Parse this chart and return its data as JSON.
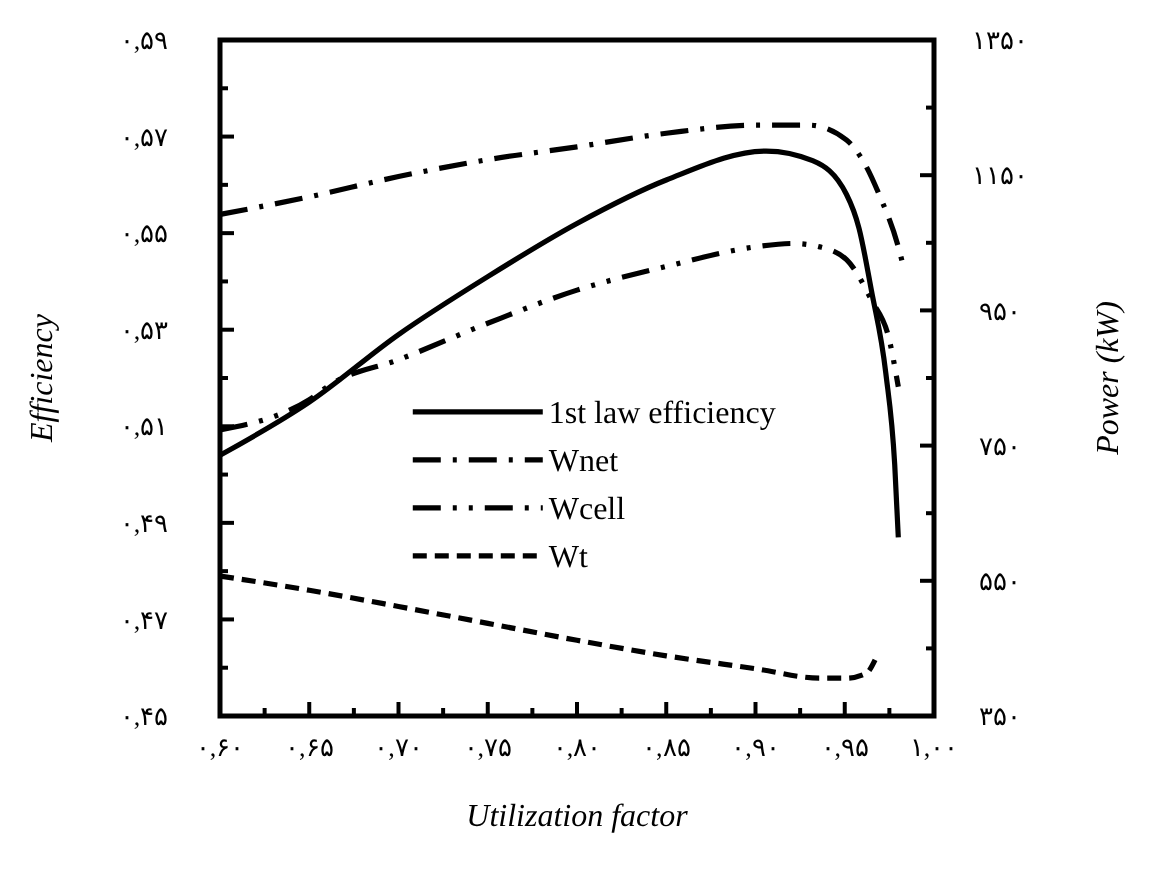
{
  "chart_data": {
    "type": "line",
    "xlabel": "Utilization factor",
    "ylabel": "Efficiency",
    "y2label": "Power  (kW)",
    "xlim": [
      0.6,
      1.0
    ],
    "xticks": [
      {
        "value": 0.6,
        "label": "۰,۶۰"
      },
      {
        "value": 0.625,
        "label": null
      },
      {
        "value": 0.65,
        "label": "۰,۶۵"
      },
      {
        "value": 0.675,
        "label": null
      },
      {
        "value": 0.7,
        "label": "۰,۷۰"
      },
      {
        "value": 0.725,
        "label": null
      },
      {
        "value": 0.75,
        "label": "۰,۷۵"
      },
      {
        "value": 0.775,
        "label": null
      },
      {
        "value": 0.8,
        "label": "۰,۸۰"
      },
      {
        "value": 0.825,
        "label": null
      },
      {
        "value": 0.85,
        "label": "۰,۸۵"
      },
      {
        "value": 0.875,
        "label": null
      },
      {
        "value": 0.9,
        "label": "۰,۹۰"
      },
      {
        "value": 0.925,
        "label": null
      },
      {
        "value": 0.95,
        "label": "۰,۹۵"
      },
      {
        "value": 0.975,
        "label": null
      },
      {
        "value": 1.0,
        "label": "۱,۰۰"
      }
    ],
    "ylim": [
      0.45,
      0.59
    ],
    "yticks": [
      {
        "value": 0.45,
        "label": "۰,۴۵"
      },
      {
        "value": 0.46,
        "label": null
      },
      {
        "value": 0.47,
        "label": "۰,۴۷"
      },
      {
        "value": 0.48,
        "label": null
      },
      {
        "value": 0.49,
        "label": "۰,۴۹"
      },
      {
        "value": 0.5,
        "label": null
      },
      {
        "value": 0.51,
        "label": "۰,۵۱"
      },
      {
        "value": 0.52,
        "label": null
      },
      {
        "value": 0.53,
        "label": "۰,۵۳"
      },
      {
        "value": 0.54,
        "label": null
      },
      {
        "value": 0.55,
        "label": "۰,۵۵"
      },
      {
        "value": 0.56,
        "label": null
      },
      {
        "value": 0.57,
        "label": "۰,۵۷"
      },
      {
        "value": 0.58,
        "label": null
      },
      {
        "value": 0.59,
        "label": "۰,۵۹"
      }
    ],
    "y2lim": [
      350,
      1350
    ],
    "y2ticks": [
      {
        "value": 350,
        "label": "۳۵۰"
      },
      {
        "value": 450,
        "label": null
      },
      {
        "value": 550,
        "label": "۵۵۰"
      },
      {
        "value": 650,
        "label": null
      },
      {
        "value": 750,
        "label": "۷۵۰"
      },
      {
        "value": 850,
        "label": null
      },
      {
        "value": 950,
        "label": "۹۵۰"
      },
      {
        "value": 1050,
        "label": null
      },
      {
        "value": 1150,
        "label": "۱۱۵۰"
      },
      {
        "value": 1250,
        "label": null
      },
      {
        "value": 1350,
        "label": "۱۳۵۰"
      }
    ],
    "legend": "bottom",
    "grid": false,
    "series": [
      {
        "name": "1st law efficiency",
        "color": "#000000",
        "line_style": "solid",
        "x": [
          0.6,
          0.65,
          0.7,
          0.75,
          0.8,
          0.85,
          0.906,
          0.932,
          0.951,
          0.958,
          0.965,
          0.973,
          0.978,
          0.98
        ],
        "values": [
          0.504,
          0.515,
          0.529,
          0.541,
          0.552,
          0.561,
          0.567,
          0.565,
          0.558,
          0.551,
          0.538,
          0.521,
          0.502,
          0.487
        ]
      },
      {
        "name": "Wnet",
        "color": "#000000",
        "line_style": "dashdot",
        "axis": "y2",
        "x": [
          0.6,
          0.65,
          0.7,
          0.75,
          0.8,
          0.85,
          0.9,
          0.93,
          0.951,
          0.962,
          0.969,
          0.98,
          0.982
        ],
        "values": [
          1092,
          1118,
          1148,
          1173,
          1192,
          1212,
          1224,
          1224,
          1202,
          1163,
          1123,
          1044,
          1024
        ]
      },
      {
        "name": "Wcell",
        "color": "#000000",
        "line_style": "dashdotdot",
        "axis": "y2",
        "x": [
          0.6,
          0.65,
          0.663,
          0.7,
          0.75,
          0.8,
          0.85,
          0.9,
          0.921,
          0.936,
          0.951,
          0.965,
          0.975,
          0.98
        ],
        "values": [
          773,
          818,
          842,
          877,
          931,
          980,
          1015,
          1044,
          1049,
          1044,
          1025,
          965,
          906,
          837
        ]
      },
      {
        "name": "Wt",
        "color": "#000000",
        "line_style": "dashed",
        "axis": "y2",
        "x": [
          0.6,
          0.65,
          0.7,
          0.75,
          0.8,
          0.85,
          0.9,
          0.936,
          0.951,
          0.962,
          0.967
        ],
        "values": [
          557,
          536,
          512,
          487,
          462,
          439,
          420,
          406,
          406,
          413,
          433
        ]
      }
    ]
  }
}
